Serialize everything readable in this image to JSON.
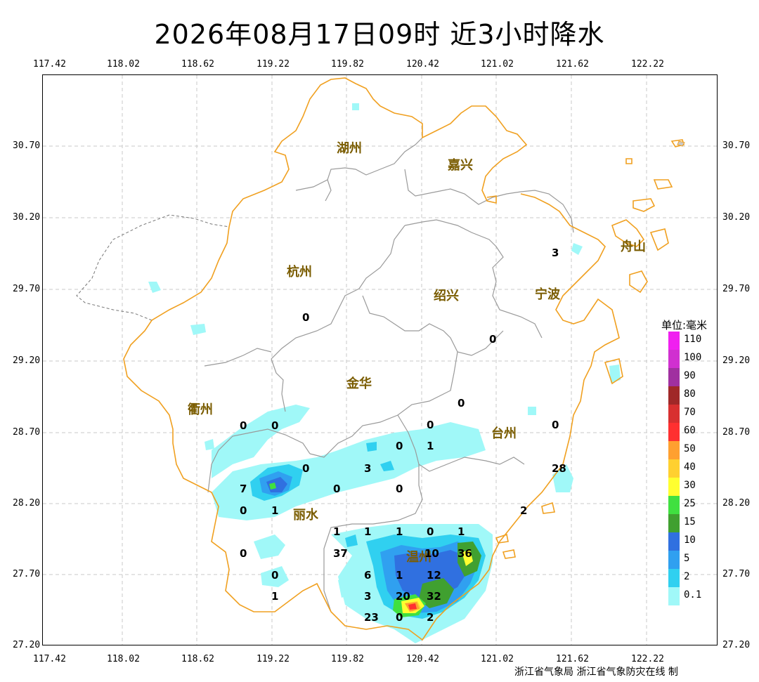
{
  "title": "2026年08月17日09时  近3小时降水",
  "lon_ticks": [
    "117.42",
    "118.02",
    "118.62",
    "119.22",
    "119.82",
    "120.42",
    "121.02",
    "121.62",
    "122.22"
  ],
  "lat_ticks": [
    "30.70",
    "30.20",
    "29.70",
    "29.20",
    "28.70",
    "28.20",
    "27.70",
    "27.20"
  ],
  "cities": [
    {
      "name": "湖州"
    },
    {
      "name": "嘉兴"
    },
    {
      "name": "杭州"
    },
    {
      "name": "绍兴"
    },
    {
      "name": "宁波"
    },
    {
      "name": "金华"
    },
    {
      "name": "衢州"
    },
    {
      "name": "台州"
    },
    {
      "name": "丽水"
    },
    {
      "name": "温州"
    },
    {
      "name": "舟山"
    }
  ],
  "station_values": [
    "3",
    "0",
    "0",
    "0",
    "0",
    "0",
    "0",
    "0",
    "1",
    "0",
    "3",
    "0",
    "0",
    "0",
    "28",
    "7",
    "0",
    "1",
    "2",
    "1",
    "1",
    "1",
    "0",
    "1",
    "0",
    "37",
    "10",
    "36",
    "0",
    "6",
    "1",
    "12",
    "1",
    "3",
    "20",
    "32",
    "23",
    "0",
    "2"
  ],
  "legend": {
    "title": "单位:毫米",
    "items": [
      {
        "label": "110",
        "color": "#f020f0"
      },
      {
        "label": "100",
        "color": "#d030d0"
      },
      {
        "label": "90",
        "color": "#a030a0"
      },
      {
        "label": "80",
        "color": "#a02828"
      },
      {
        "label": "70",
        "color": "#d83030"
      },
      {
        "label": "60",
        "color": "#ff3030"
      },
      {
        "label": "50",
        "color": "#ffa030"
      },
      {
        "label": "40",
        "color": "#ffd030"
      },
      {
        "label": "30",
        "color": "#ffff30"
      },
      {
        "label": "25",
        "color": "#40e040"
      },
      {
        "label": "15",
        "color": "#40a030"
      },
      {
        "label": "10",
        "color": "#3070e0"
      },
      {
        "label": "5",
        "color": "#30a0f0"
      },
      {
        "label": "2",
        "color": "#30d0f0"
      },
      {
        "label": "0.1",
        "color": "#a0f8f8"
      }
    ]
  },
  "credit": "浙江省气象局 浙江省气象防灾在线 制"
}
